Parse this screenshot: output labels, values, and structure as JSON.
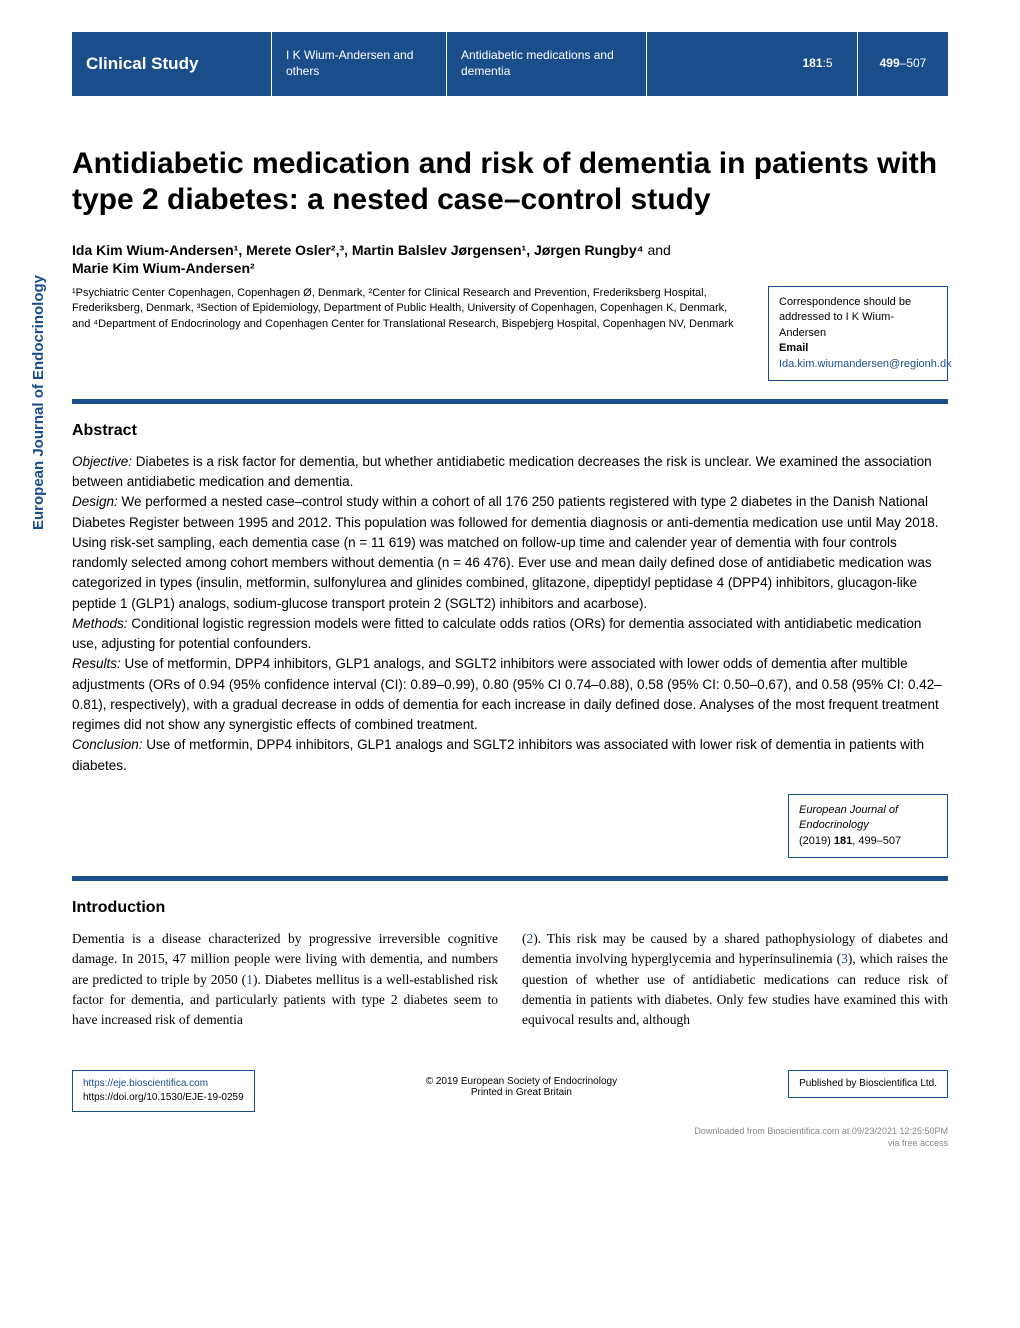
{
  "header": {
    "study_type": "Clinical Study",
    "authors_short": "I K Wium-Andersen and others",
    "short_title": "Antidiabetic medications and dementia",
    "volume_issue": "181:5",
    "volume_bold": "181",
    "pages_bold": "499",
    "pages_rest": "–507"
  },
  "journal_sidebar": "European Journal of Endocrinology",
  "title": "Antidiabetic medication and risk of dementia in patients with type 2 diabetes: a nested case–control study",
  "authors_html": "Ida Kim Wium-Andersen¹, Merete Osler²,³, Martin Balslev Jørgensen¹, Jørgen Rungby⁴",
  "authors_and": " and ",
  "authors_last": "Marie Kim Wium-Andersen²",
  "affiliations": "¹Psychiatric Center Copenhagen, Copenhagen Ø, Denmark, ²Center for Clinical Research and Prevention, Frederiksberg Hospital, Frederiksberg, Denmark, ³Section of Epidemiology, Department of Public Health, University of Copenhagen, Copenhagen K, Denmark, and ⁴Department of Endocrinology and Copenhagen Center for Translational Research, Bispebjerg Hospital, Copenhagen NV, Denmark",
  "correspondence": {
    "text": "Correspondence should be addressed to I K Wium-Andersen",
    "email_label": "Email",
    "email": "Ida.kim.wiumandersen@regionh.dk"
  },
  "abstract_heading": "Abstract",
  "abstract": {
    "objective_label": "Objective:",
    "objective": " Diabetes is a risk factor for dementia, but whether antidiabetic medication decreases the risk is unclear. We examined the association between antidiabetic medication and dementia.",
    "design_label": "Design:",
    "design": " We performed a nested case–control study within a cohort of all 176 250 patients registered with type 2 diabetes in the Danish National Diabetes Register between 1995 and 2012. This population was followed for dementia diagnosis or anti-dementia medication use until May 2018. Using risk-set sampling, each dementia case (n = 11 619) was matched on follow-up time and calender year of dementia with four controls randomly selected among cohort members without dementia (n = 46 476). Ever use and mean daily defined dose of antidiabetic medication was categorized in types (insulin, metformin, sulfonylurea and glinides combined, glitazone, dipeptidyl peptidase 4 (DPP4) inhibitors, glucagon-like peptide 1 (GLP1) analogs, sodium-glucose transport protein 2 (SGLT2) inhibitors and acarbose).",
    "methods_label": "Methods:",
    "methods": " Conditional logistic regression models were fitted to calculate odds ratios (ORs) for dementia associated with antidiabetic medication use, adjusting for potential confounders.",
    "results_label": "Results:",
    "results": " Use of metformin, DPP4 inhibitors, GLP1 analogs, and SGLT2 inhibitors were associated with lower odds of dementia after multible adjustments (ORs of 0.94 (95% confidence interval (CI): 0.89–0.99), 0.80 (95% CI 0.74–0.88), 0.58 (95% CI: 0.50–0.67), and 0.58 (95% CI: 0.42–0.81), respectively), with a gradual decrease in odds of dementia for each increase in daily defined dose. Analyses of the most frequent treatment regimes did not show any synergistic effects of combined treatment.",
    "conclusion_label": "Conclusion:",
    "conclusion": " Use of metformin, DPP4 inhibitors, GLP1 analogs and SGLT2 inhibitors was associated with lower risk of dementia in patients with diabetes."
  },
  "citation": {
    "journal": "European Journal of Endocrinology",
    "year_vol": "(2019) ",
    "vol_bold": "181",
    "pages": ", 499–507"
  },
  "intro_heading": "Introduction",
  "intro": {
    "col1": "Dementia is a disease characterized by progressive irreversible cognitive damage. In 2015, 47 million people were living with dementia, and numbers are predicted to triple by 2050 (1). Diabetes mellitus is a well-established risk factor for dementia, and particularly patients with type 2 diabetes seem to have increased risk of dementia",
    "col2": "(2). This risk may be caused by a shared pathophysiology of diabetes and dementia involving hyperglycemia and hyperinsulinemia (3), which raises the question of whether use of antidiabetic medications can reduce risk of dementia in patients with diabetes. Only few studies have examined this with equivocal results and, although"
  },
  "footer": {
    "url": "https://eje.bioscientifica.com",
    "doi": "https://doi.org/10.1530/EJE-19-0259",
    "copyright": "© 2019 European Society of Endocrinology",
    "printed": "Printed in Great Britain",
    "publisher": "Published by Bioscientifica Ltd."
  },
  "download": {
    "line1": "Downloaded from Bioscientifica.com at 09/23/2021 12:25:50PM",
    "line2": "via free access"
  }
}
